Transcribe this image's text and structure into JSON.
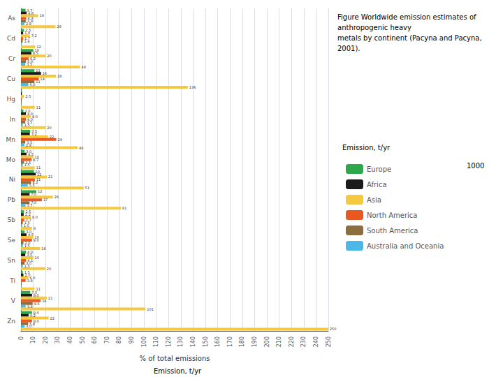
{
  "chart_data": {
    "type": "bar",
    "orientation": "horizontal",
    "title": "Figure Worldwide emission estimates of\nanthropogenic heavy\nmetals by continent (Pacyna and Pacyna,\n2001).",
    "xlabel": "% of total emissions",
    "annotations": [
      "Emission, t/yr",
      "Emission, t/yr",
      "1000"
    ],
    "categories": [
      "As",
      "Cd",
      "Cr",
      "Cu",
      "Hg",
      "In",
      "Mn",
      "Mo",
      "Ni",
      "Pb",
      "Sb",
      "Se",
      "Sn",
      "Ti",
      "V",
      "Zn"
    ],
    "series": [
      {
        "name": "Europe",
        "color": "#2da84a",
        "values": [
          3.7,
          2.5,
          10.0,
          11.0,
          0.75,
          2.0,
          7.5,
          3.0,
          10.5,
          12.5,
          2.5,
          3.0,
          4.0,
          1.5,
          7.5,
          9.0
        ],
        "value_labels": [
          "3.7",
          "2.5",
          "10",
          "11",
          null,
          "2.0",
          "7.5",
          "3.0",
          "10",
          "12",
          "2.5",
          "3.0",
          "4.0",
          "1.5",
          "7.5",
          "9.0"
        ]
      },
      {
        "name": "Africa",
        "color": "#1a1a1a",
        "values": [
          4.6,
          1.8,
          8.5,
          16.3,
          0.78,
          4.0,
          7.2,
          4.5,
          12.0,
          7.0,
          2.2,
          4.5,
          3.5,
          2.0,
          9.0,
          6.2
        ],
        "value_labels": [
          "4.6",
          "1.8",
          "8.5",
          "16",
          null,
          "4.0",
          "7.2",
          "4.5",
          "12",
          "7.0",
          "2.2",
          "4.5",
          "3.5",
          "2.0",
          "9.0",
          "6.2"
        ]
      },
      {
        "name": "Asia",
        "color": "#f5c842",
        "values": [
          14.0,
          7.2,
          20.0,
          28.5,
          2.5,
          8.0,
          22.0,
          10.0,
          21.0,
          26.0,
          8.0,
          10.0,
          10.0,
          6.0,
          21.0,
          22.5
        ],
        "value_labels": [
          "14",
          "7.2",
          "20",
          "28",
          "2.5",
          "8.0",
          "22",
          "10",
          "21",
          "26",
          "8.0",
          "10",
          "10",
          "6.0",
          "21",
          "22"
        ]
      },
      {
        "name": "North America",
        "color": "#e85820",
        "values": [
          4.3,
          1.7,
          6.2,
          14.5,
          0.72,
          4.0,
          28.7,
          8.7,
          11.3,
          17.0,
          2.7,
          9.0,
          4.1,
          3.8,
          16.0,
          9.0
        ],
        "value_labels": [
          "4.3",
          "1.7",
          "6.2",
          "14",
          null,
          "4.0",
          "29",
          "8.7",
          "11",
          "17",
          "2.7",
          "9.0",
          "4.1",
          "3.8",
          "16",
          "9.0"
        ]
      },
      {
        "name": "South America",
        "color": "#8c6d3f",
        "values": [
          3.9,
          1.4,
          4.0,
          11.0,
          0.6,
          3.5,
          3.5,
          2.5,
          8.2,
          7.0,
          1.5,
          2.0,
          3.0,
          0.5,
          9.5,
          5.8
        ],
        "value_labels": [
          "3.9",
          "1.4",
          "4.0",
          "11",
          null,
          "3.5",
          "3.5",
          "2.5",
          "8.2",
          "7.0",
          "1.5",
          "2.0",
          "3.0",
          null,
          "9.5",
          "5.8"
        ]
      },
      {
        "name": "Australia and Oceania",
        "color": "#4bb8e8",
        "values": [
          2.8,
          0.7,
          3.5,
          6.0,
          0.4,
          1.5,
          2.8,
          1.5,
          5.5,
          3.7,
          1.0,
          1.5,
          1.5,
          0.5,
          3.8,
          3.0
        ],
        "value_labels": [
          "2.8",
          null,
          "3.5",
          "6.0",
          null,
          "1.5",
          "2.8",
          "1.5",
          "5.5",
          "3.7",
          "1.0",
          "1.5",
          "1.5",
          null,
          "3.8",
          "3.0"
        ]
      },
      {
        "color": "#f5c842",
        "values": [
          28.1,
          11.6,
          48.0,
          135.7,
          11.2,
          20.0,
          46.0,
          11.2,
          51.0,
          81.3,
          8.9,
          15.5,
          19.8,
          11.1,
          101.3,
          249.9
        ],
        "value_labels": [
          "28",
          "12",
          "48",
          "136",
          "11",
          "20",
          "46",
          "11",
          "51",
          "81",
          "9",
          "16",
          "20",
          "11",
          "101",
          "250"
        ]
      }
    ],
    "xlim": [
      0,
      250
    ],
    "xticks": [
      0,
      10,
      20,
      30,
      40,
      50,
      60,
      70,
      80,
      90,
      100,
      110,
      120,
      130,
      140,
      150,
      160,
      170,
      180,
      190,
      200,
      210,
      220,
      230,
      240,
      250
    ],
    "grid": true,
    "data_labels": true,
    "legend": "right"
  }
}
